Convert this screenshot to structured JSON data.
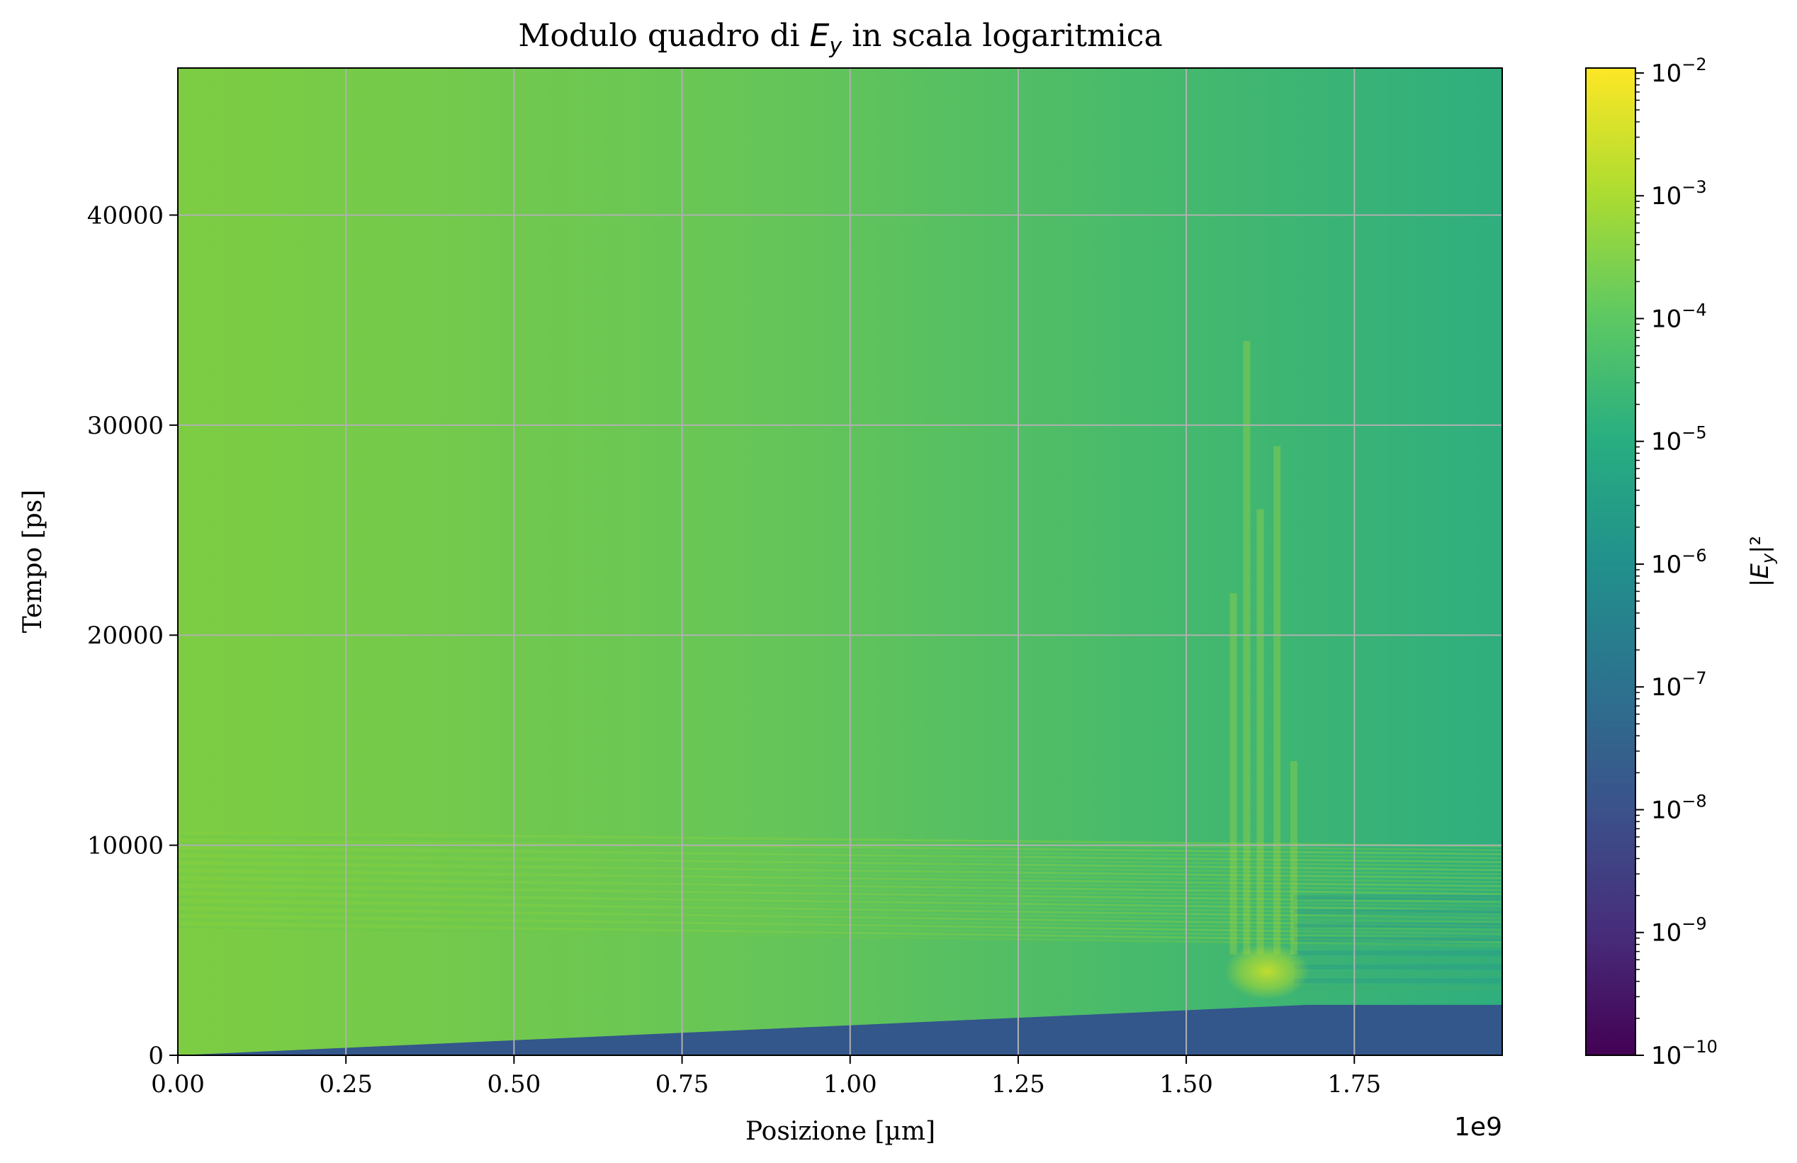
{
  "chart_data": {
    "type": "heatmap",
    "title_prefix": "Modulo quadro di ",
    "title_var": "E",
    "title_sub": "y",
    "title_suffix": " in scala logaritmica",
    "xlabel": "Posizione [µm]",
    "ylabel": "Tempo [ps]",
    "x_offset_text": "1e9",
    "xlim": [
      0,
      1.97
    ],
    "ylim": [
      0,
      47000
    ],
    "x_ticks": [
      0.0,
      0.25,
      0.5,
      0.75,
      1.0,
      1.25,
      1.5,
      1.75
    ],
    "x_tick_labels": [
      "0.00",
      "0.25",
      "0.50",
      "0.75",
      "1.00",
      "1.25",
      "1.50",
      "1.75"
    ],
    "y_ticks": [
      0,
      10000,
      20000,
      30000,
      40000
    ],
    "y_tick_labels": [
      "0",
      "10000",
      "20000",
      "30000",
      "40000"
    ],
    "grid": true,
    "colormap": "viridis",
    "colorbar": {
      "scale": "log",
      "min_exp": -10,
      "max_exp": -2,
      "tick_exps": [
        -10,
        -9,
        -8,
        -7,
        -6,
        -5,
        -4,
        -3,
        -2
      ],
      "label_var": "E",
      "label_sub": "y",
      "label_pre": "|",
      "label_post": "|²"
    },
    "regions": {
      "wavefront_end_x": 1.68,
      "wavefront_end_t": 2400,
      "pre_front_log_value": -7.9,
      "field_log_left": -3.6,
      "field_log_right": -4.6,
      "reflection_cluster_x": 1.62,
      "reflection_cluster_t": 4000,
      "reflection_peak_log": -3.2
    },
    "colors": {
      "pre_front": "#33568b",
      "field_left": "#7dcd42",
      "field_right": "#2fae7e",
      "grid": "#b0b0b0",
      "axes": "#000000"
    }
  }
}
